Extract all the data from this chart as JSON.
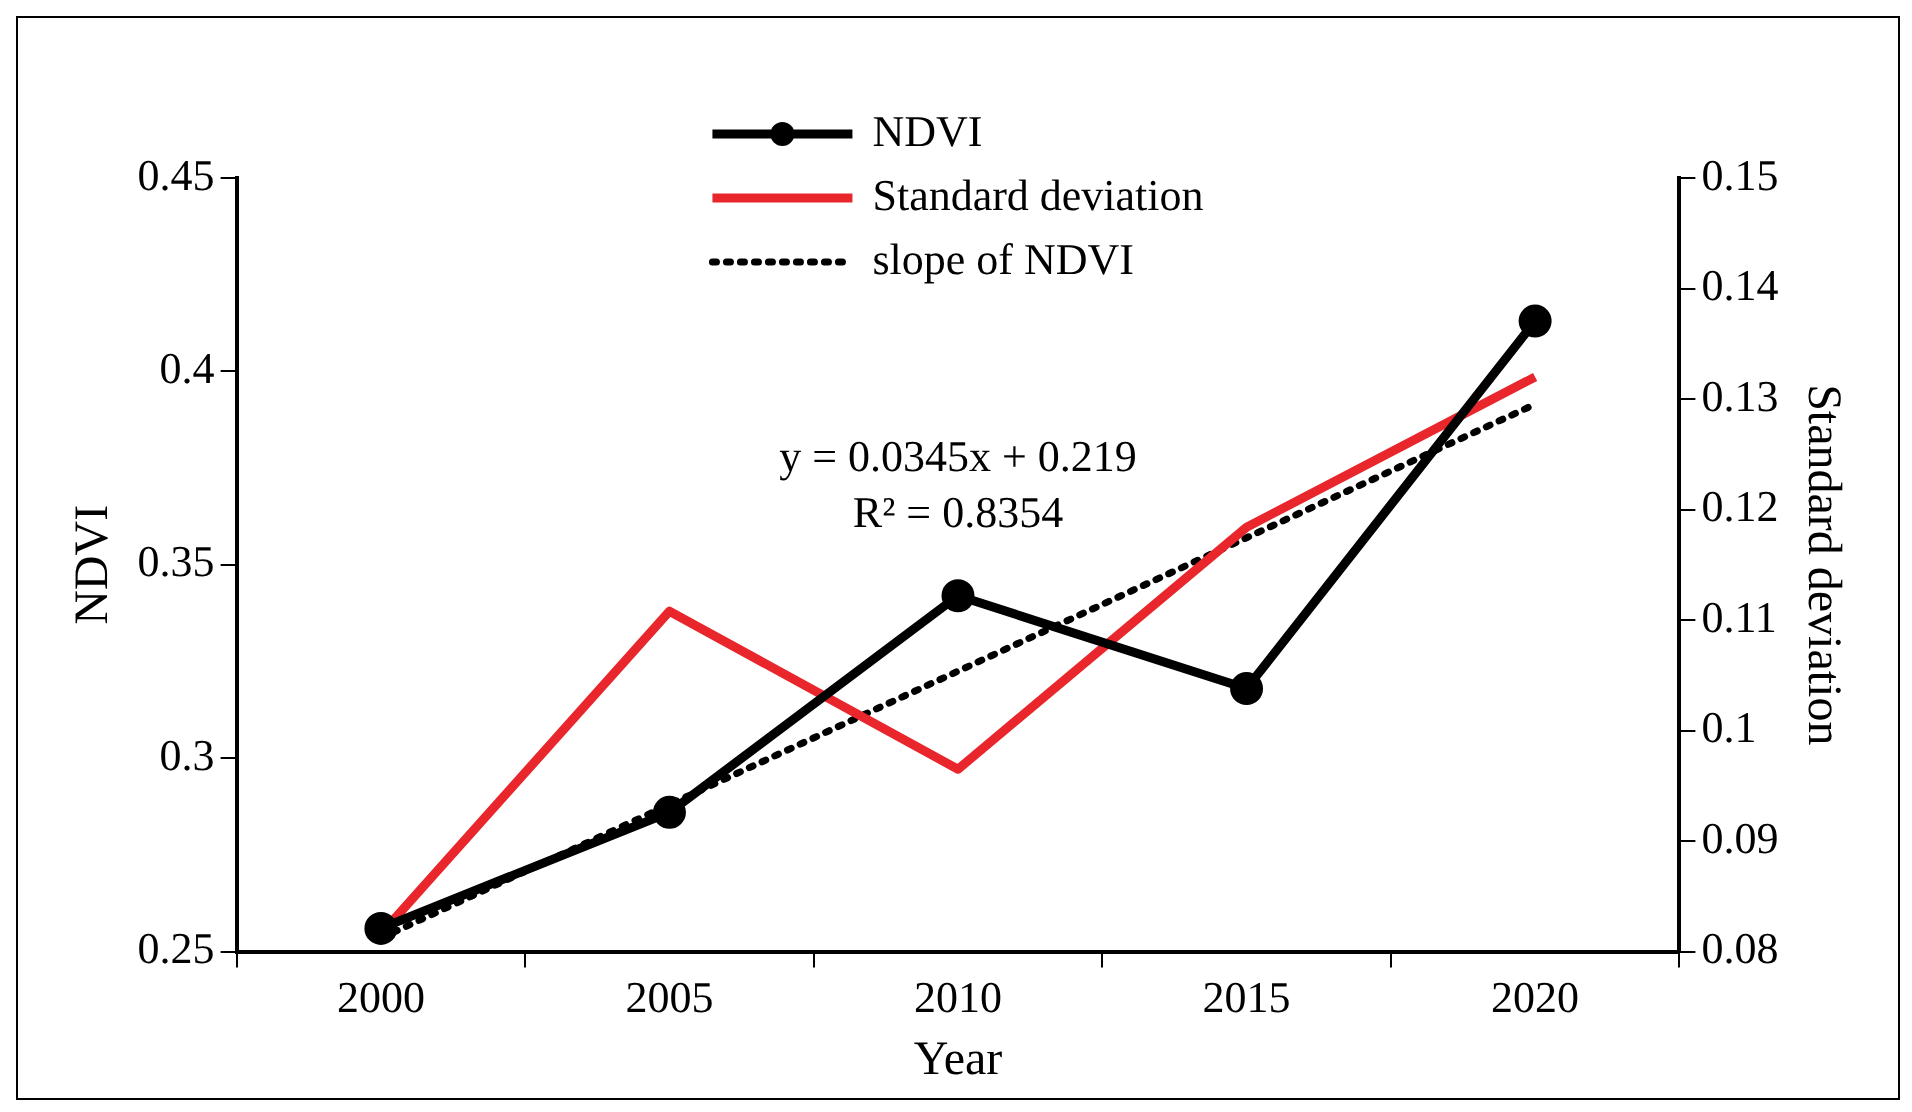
{
  "chart_data": {
    "type": "line",
    "xlabel": "Year",
    "ylabel": "NDVI",
    "y2label": "Standard deviation",
    "categories": [
      "2000",
      "2005",
      "2010",
      "2015",
      "2020"
    ],
    "series": [
      {
        "name": "NDVI",
        "color": "#000000",
        "values": [
          0.256,
          0.286,
          0.342,
          0.318,
          0.413
        ],
        "marker": "circle",
        "line_style": "solid"
      },
      {
        "name": "Standard deviation",
        "color": "#e8262b",
        "values": [
          0.0816,
          0.1108,
          0.0965,
          0.1184,
          0.132
        ],
        "axis": "y2",
        "marker": "none",
        "line_style": "solid"
      },
      {
        "name": "slope of NDVI",
        "color": "#000000",
        "values": [
          0.2535,
          0.288,
          0.3225,
          0.357,
          0.3915
        ],
        "marker": "none",
        "line_style": "dotted"
      }
    ],
    "ylim": [
      0.25,
      0.45
    ],
    "yticks": [
      0.25,
      0.3,
      0.35,
      0.4,
      0.45
    ],
    "y2lim": [
      0.08,
      0.15
    ],
    "y2ticks": [
      0.08,
      0.09,
      0.1,
      0.11,
      0.12,
      0.13,
      0.14,
      0.15
    ],
    "annotations": [
      "y = 0.0345x + 0.219",
      "R² = 0.8354"
    ],
    "grid": false,
    "legend": "top"
  }
}
